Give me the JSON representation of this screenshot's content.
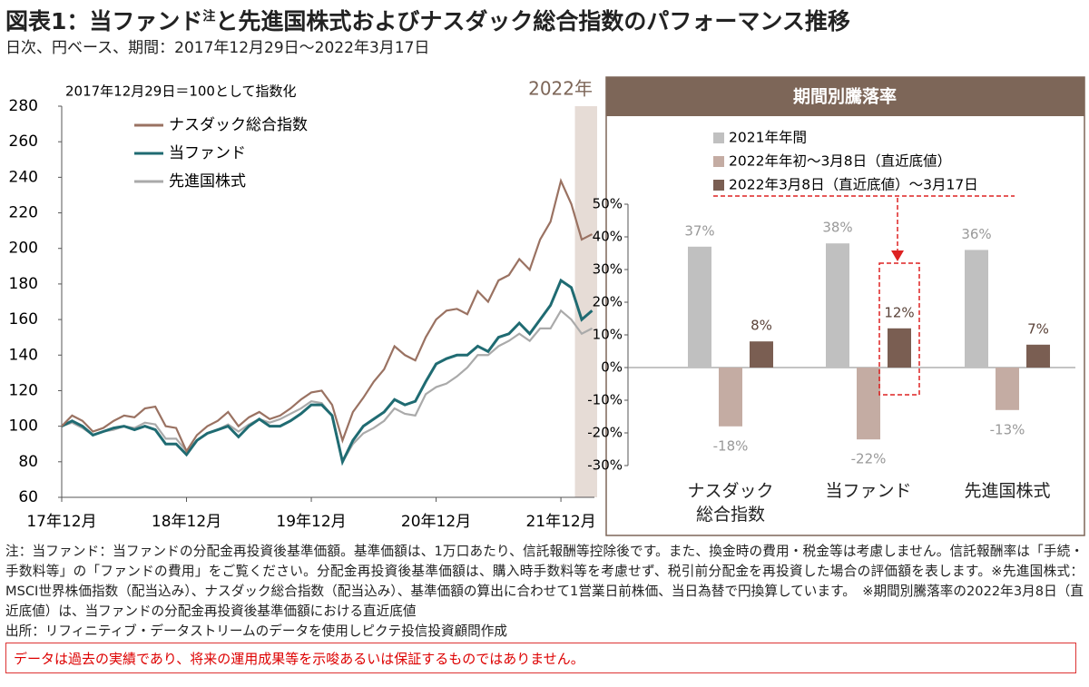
{
  "page": {
    "title": "図表1：当ファンド",
    "title_sup": "注",
    "title_rest": "と先進国株式およびナスダック総合指数のパフォーマンス推移",
    "subtitle": "日次、円ベース、期間：2017年12月29日～2022年3月17日",
    "notes": [
      "注：当ファンド：当ファンドの分配金再投資後基準価額。基準価額は、1万口あたり、信託報酬等控除後です。また、換金時の費用・税金等は考慮しません。信託報酬率は「手続・手数料等」の「ファンドの費用」をご覧ください。分配金再投資後基準価額は、購入時手数料等を考慮せず、税引前分配金を再投資した場合の評価額を表します。※先進国株式：MSCI世界株価指数（配当込み）、ナスダック総合指数（配当込み）、基準価額の算出に合わせて1営業日前株価、当日為替で円換算しています。　※期間別騰落率の2022年3月8日（直近底値）は、当ファンドの分配金再投資後基準価額における直近底値",
      "出所：リフィニティブ・データストリームのデータを使用しピクテ投信投資顧問作成"
    ],
    "disclaimer": "データは過去の実績であり、将来の運用成果等を示唆あるいは保証するものではありません。"
  },
  "chart_data": [
    {
      "type": "line",
      "annotation": "2017年12月29日＝100として指数化",
      "highlight_label": "2022年",
      "categories": [
        "17年12月",
        null,
        null,
        null,
        null,
        null,
        null,
        null,
        null,
        null,
        null,
        null,
        "18年12月",
        null,
        null,
        null,
        null,
        null,
        null,
        null,
        null,
        null,
        null,
        null,
        "19年12月",
        null,
        null,
        null,
        null,
        null,
        null,
        null,
        null,
        null,
        null,
        null,
        "20年12月",
        null,
        null,
        null,
        null,
        null,
        null,
        null,
        null,
        null,
        null,
        null,
        "21年12月",
        null,
        null,
        null
      ],
      "series": [
        {
          "name": "ナスダック総合指数",
          "color": "#9a7262",
          "values": [
            100,
            106,
            103,
            97,
            99,
            103,
            106,
            105,
            110,
            111,
            100,
            99,
            86,
            95,
            100,
            103,
            108,
            100,
            105,
            108,
            104,
            106,
            110,
            115,
            119,
            120,
            112,
            92,
            108,
            116,
            125,
            132,
            145,
            140,
            137,
            150,
            160,
            165,
            166,
            163,
            176,
            170,
            182,
            185,
            194,
            188,
            205,
            215,
            238,
            225,
            205,
            208
          ]
        },
        {
          "name": "当ファンド",
          "color": "#1f6b72",
          "values": [
            100,
            103,
            100,
            95,
            97,
            99,
            100,
            98,
            100,
            98,
            90,
            90,
            84,
            92,
            96,
            98,
            100,
            94,
            100,
            104,
            100,
            100,
            103,
            107,
            112,
            112,
            106,
            80,
            92,
            100,
            104,
            108,
            115,
            112,
            114,
            125,
            135,
            138,
            140,
            140,
            145,
            142,
            150,
            152,
            158,
            152,
            160,
            168,
            182,
            178,
            160,
            165
          ]
        },
        {
          "name": "先進国株式",
          "color": "#aaaaaa",
          "values": [
            100,
            102,
            99,
            95,
            97,
            98,
            100,
            99,
            102,
            101,
            93,
            93,
            86,
            92,
            96,
            98,
            101,
            97,
            101,
            104,
            102,
            104,
            107,
            110,
            114,
            113,
            106,
            80,
            90,
            96,
            99,
            103,
            110,
            107,
            106,
            118,
            122,
            124,
            128,
            133,
            140,
            140,
            145,
            148,
            152,
            148,
            155,
            155,
            165,
            160,
            152,
            155
          ]
        }
      ],
      "ylim": [
        60,
        280
      ],
      "yticks": [
        60,
        80,
        100,
        120,
        140,
        160,
        180,
        200,
        220,
        240,
        260,
        280
      ]
    },
    {
      "type": "bar",
      "title": "期間別騰落率",
      "categories": [
        "ナスダック総合指数",
        "当ファンド",
        "先進国株式"
      ],
      "series": [
        {
          "name": "2021年年間",
          "color": "#c0c0c0",
          "values": [
            37,
            38,
            36
          ],
          "value_labels": [
            "37%",
            "38%",
            "36%"
          ]
        },
        {
          "name": "2022年年初～3月8日（直近底値）",
          "color": "#c4aca3",
          "values": [
            -18,
            -22,
            -13
          ],
          "value_labels": [
            "-18%",
            "-22%",
            "-13%"
          ]
        },
        {
          "name": "2022年3月8日（直近底値）～3月17日",
          "color": "#7a5e52",
          "values": [
            8,
            12,
            7
          ],
          "value_labels": [
            "8%",
            "12%",
            "7%"
          ]
        }
      ],
      "ylim": [
        -30,
        50
      ],
      "yticks": [
        {
          "value": -30,
          "label": "-30%"
        },
        {
          "value": -20,
          "label": "-20%"
        },
        {
          "value": -10,
          "label": "-10%"
        },
        {
          "value": 0,
          "label": "0%"
        },
        {
          "value": 10,
          "label": "10%"
        },
        {
          "value": 20,
          "label": "20%"
        },
        {
          "value": 30,
          "label": "30%"
        },
        {
          "value": 40,
          "label": "40%"
        },
        {
          "value": 50,
          "label": "50%"
        }
      ]
    }
  ]
}
